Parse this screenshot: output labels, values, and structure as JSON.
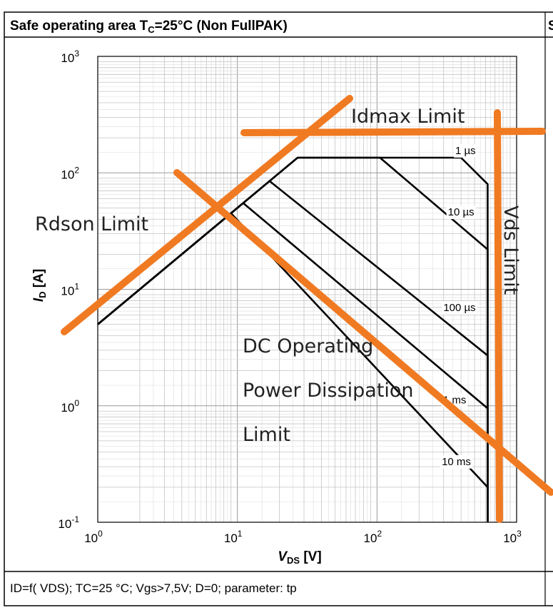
{
  "header": {
    "title_main": "Safe operating area T",
    "title_sub": "C",
    "title_rest": "=25°C (Non FullPAK)",
    "right_fragment": "S"
  },
  "footer": {
    "caption": "ID=f( VDS);  TC=25 °C; Vgs>7,5V; D=0; parameter: tp"
  },
  "chart_data": {
    "type": "line",
    "x_scale": "log",
    "y_scale": "log",
    "xlim": [
      1,
      1000
    ],
    "ylim": [
      0.1,
      1000
    ],
    "grid": true,
    "xlabel": "VDS [V]",
    "ylabel": "ID [A]",
    "x_ticks": [
      {
        "base": "10",
        "exp": "0"
      },
      {
        "base": "10",
        "exp": "1"
      },
      {
        "base": "10",
        "exp": "2"
      },
      {
        "base": "10",
        "exp": "3"
      }
    ],
    "y_ticks": [
      {
        "base": "10",
        "exp": "-1"
      },
      {
        "base": "10",
        "exp": "0"
      },
      {
        "base": "10",
        "exp": "1"
      },
      {
        "base": "10",
        "exp": "2"
      },
      {
        "base": "10",
        "exp": "3"
      }
    ],
    "series": [
      {
        "name": "1 µs",
        "points": [
          [
            1,
            5
          ],
          [
            27,
            135
          ],
          [
            400,
            135
          ],
          [
            620,
            80
          ],
          [
            620,
            0.1
          ]
        ],
        "label_at": [
          430,
          145
        ]
      },
      {
        "name": "10 µs",
        "points": [
          [
            1,
            5
          ],
          [
            27,
            135
          ],
          [
            105,
            135
          ],
          [
            620,
            22
          ],
          [
            620,
            0.1
          ]
        ],
        "label_at": [
          400,
          43
        ]
      },
      {
        "name": "100 µs",
        "points": [
          [
            1,
            5
          ],
          [
            17,
            85
          ],
          [
            620,
            2.7
          ],
          [
            620,
            0.1
          ]
        ],
        "label_at": [
          390,
          6.5
        ]
      },
      {
        "name": "1 ms",
        "points": [
          [
            1,
            5
          ],
          [
            11,
            55
          ],
          [
            620,
            0.95
          ],
          [
            620,
            0.1
          ]
        ],
        "label_at": [
          360,
          1.05
        ]
      },
      {
        "name": "10 ms",
        "points": [
          [
            1,
            5
          ],
          [
            9,
            45
          ],
          [
            620,
            0.2
          ],
          [
            620,
            0.1
          ]
        ],
        "label_at": [
          370,
          0.31
        ]
      }
    ],
    "annotations": [
      {
        "text": "Idmax Limit",
        "color": "#F07A22"
      },
      {
        "text": "Vds Limit",
        "color": "#F07A22"
      },
      {
        "text": "Rdson Limit",
        "color": "#F07A22"
      },
      {
        "text": "DC Operating",
        "color": "#F07A22"
      },
      {
        "text": "Power Dissipation",
        "color": "#F07A22"
      },
      {
        "text": "Limit",
        "color": "#F07A22"
      }
    ],
    "annotation_line_color": "#F07A22"
  }
}
